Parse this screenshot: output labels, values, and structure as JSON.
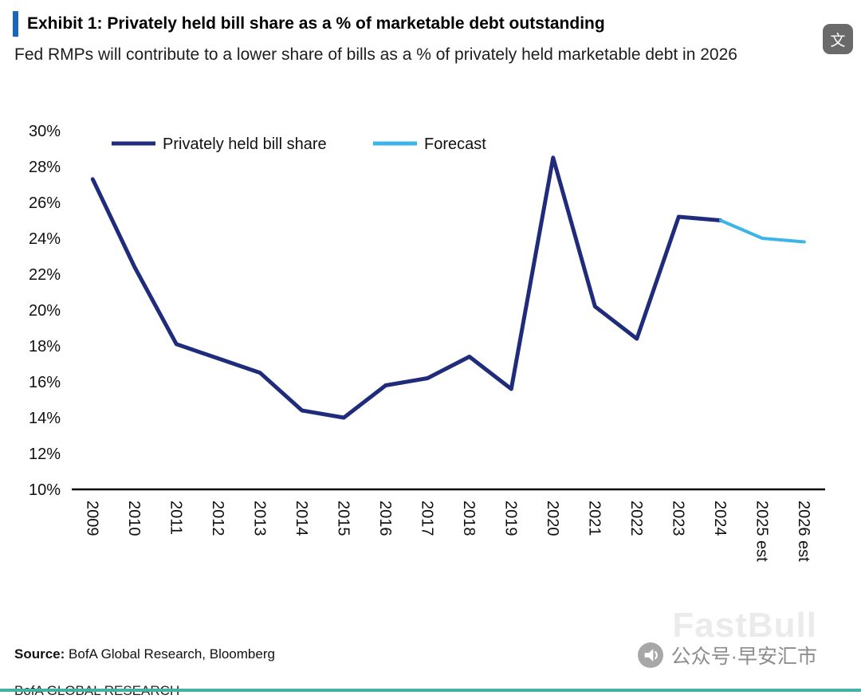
{
  "header": {
    "title": "Exhibit 1: Privately held bill share as a % of marketable debt outstanding",
    "subtitle": "Fed RMPs will contribute to a lower share of bills as a % of privately held marketable debt in 2026",
    "accent_color": "#1a66b8",
    "translate_icon_glyph": "文"
  },
  "chart_data": {
    "type": "line",
    "title": "",
    "xlabel": "",
    "ylabel": "",
    "categories": [
      "2009",
      "2010",
      "2011",
      "2012",
      "2013",
      "2014",
      "2015",
      "2016",
      "2017",
      "2018",
      "2019",
      "2020",
      "2021",
      "2022",
      "2023",
      "2024",
      "2025 est",
      "2026 est"
    ],
    "series": [
      {
        "name": "Privately held bill share",
        "color": "#1f2c7b",
        "width": 5,
        "values": [
          27.3,
          22.4,
          18.1,
          17.3,
          16.5,
          14.4,
          14.0,
          15.8,
          16.2,
          17.4,
          15.6,
          28.5,
          20.2,
          18.4,
          25.2,
          25.0,
          null,
          null
        ]
      },
      {
        "name": "Forecast",
        "color": "#3bb5e8",
        "width": 4,
        "values": [
          null,
          null,
          null,
          null,
          null,
          null,
          null,
          null,
          null,
          null,
          null,
          null,
          null,
          null,
          null,
          25.0,
          24.0,
          23.8
        ]
      }
    ],
    "ylim": [
      10,
      30
    ],
    "ytick_step": 2,
    "ytick_format": "percent",
    "grid": false,
    "legend_position": "inside-top-left"
  },
  "footer": {
    "source_label": "Source:",
    "source_text": "BofA Global Research, Bloomberg",
    "brand": "BofA GLOBAL RESEARCH"
  },
  "watermarks": {
    "fastbull": "FastBull",
    "wechat_text": "公众号·早安汇市"
  }
}
